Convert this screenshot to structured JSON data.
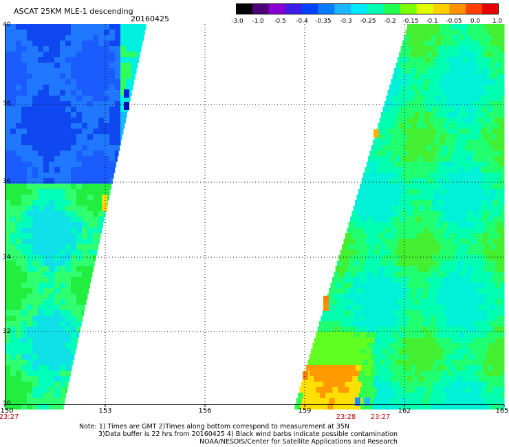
{
  "header": {
    "title": "ASCAT 25KM MLE-1 descending",
    "date": "20160425"
  },
  "colorbar": {
    "labels": [
      "-3.0",
      "-1.0",
      "-0.5",
      "-0.4",
      "-0.35",
      "-0.3",
      "-0.25",
      "-0.2",
      "-0.15",
      "-0.1",
      "-0.05",
      "0.0",
      "1.0"
    ],
    "colors": [
      "#000000",
      "#4d0078",
      "#8a00d0",
      "#3c1ee8",
      "#0040ff",
      "#0a7cff",
      "#1ab6ff",
      "#00eaff",
      "#00ffb0",
      "#20ff50",
      "#7cff00",
      "#e0ff00",
      "#ffd000",
      "#ff9000",
      "#ff4000",
      "#e60000"
    ]
  },
  "map": {
    "lon_labels": [
      "150",
      "153",
      "156",
      "159",
      "162",
      "165"
    ],
    "lat_labels": [
      "40",
      "38",
      "36",
      "34",
      "32",
      "30"
    ],
    "time_labels": [
      "23:27",
      "23:28",
      "23:27"
    ]
  },
  "notes": {
    "line1": "Note: 1) Times are GMT 2)Times along bottom correspond to measurement at 35N",
    "line2": "3)Data buffer is 22 hrs from 20160425 4) Black wind barbs indicate possible contamination",
    "line3": "NOAA/NESDIS/Center for Satellite Applications and Research"
  }
}
